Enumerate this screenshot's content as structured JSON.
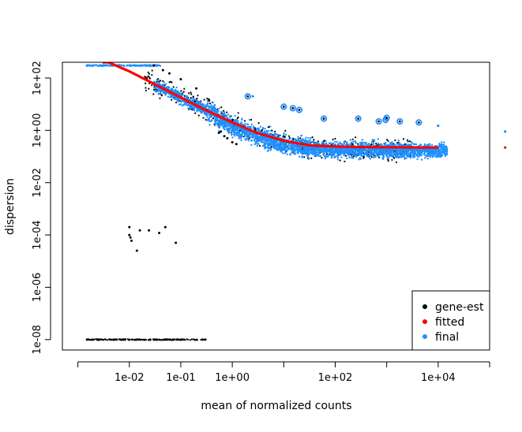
{
  "chart_data": {
    "type": "scatter",
    "title": "",
    "xlabel": "mean of normalized counts",
    "ylabel": "dispersion",
    "x_scale": "log10",
    "y_scale": "log10",
    "xlim": [
      0.0005,
      100000
    ],
    "ylim": [
      4e-09,
      400
    ],
    "grid": false,
    "legend_position": "bottom-right",
    "x_ticks": [
      {
        "value": 0.01,
        "label": "1e-02"
      },
      {
        "value": 0.1,
        "label": "1e-01"
      },
      {
        "value": 1,
        "label": "1e+00"
      },
      {
        "value": 100,
        "label": "1e+02"
      },
      {
        "value": 10000,
        "label": "1e+04"
      }
    ],
    "x_minor_ticks": [
      0.001,
      10,
      1000,
      100000
    ],
    "y_ticks": [
      {
        "value": 1e-08,
        "label": "1e-08"
      },
      {
        "value": 1e-06,
        "label": "1e-06"
      },
      {
        "value": 0.0001,
        "label": "1e-04"
      },
      {
        "value": 0.01,
        "label": "1e-02"
      },
      {
        "value": 1,
        "label": "1e+00"
      },
      {
        "value": 100,
        "label": "1e+02"
      }
    ],
    "legend": [
      {
        "label": "gene-est",
        "color": "#000000"
      },
      {
        "label": "fitted",
        "color": "#ff0000"
      },
      {
        "label": "final",
        "color": "#1e90ff"
      }
    ],
    "series": [
      {
        "name": "gene-est",
        "color": "#000000",
        "points": [
          [
            0.01,
            0.0002
          ],
          [
            0.01,
            0.0001
          ],
          [
            0.0105,
            8e-05
          ],
          [
            0.011,
            6e-05
          ],
          [
            0.014,
            2.5e-05
          ],
          [
            0.016,
            0.00015
          ],
          [
            0.024,
            0.00015
          ],
          [
            0.038,
            0.00012
          ],
          [
            0.05,
            0.0002
          ],
          [
            0.08,
            5e-05
          ],
          [
            0.0015,
            1e-08
          ],
          [
            0.3,
            1e-08
          ],
          [
            0.03,
            300
          ],
          [
            0.045,
            200
          ],
          [
            0.06,
            150
          ],
          [
            0.1,
            90
          ],
          [
            0.2,
            40
          ],
          [
            0.35,
            15
          ],
          [
            0.55,
            0.8
          ],
          [
            0.7,
            0.6
          ],
          [
            0.8,
            0.5
          ],
          [
            1.0,
            0.35
          ],
          [
            0.6,
            0.9
          ],
          [
            1.2,
            0.3
          ]
        ]
      },
      {
        "name": "fitted",
        "color": "#ff0000",
        "curve": [
          [
            0.003,
            500
          ],
          [
            0.01,
            180
          ],
          [
            0.03,
            60
          ],
          [
            0.1,
            18
          ],
          [
            0.3,
            6
          ],
          [
            1,
            2
          ],
          [
            3,
            0.8
          ],
          [
            10,
            0.4
          ],
          [
            30,
            0.27
          ],
          [
            100,
            0.24
          ],
          [
            300,
            0.23
          ],
          [
            1000,
            0.225
          ],
          [
            10000,
            0.22
          ]
        ],
        "points": [
          [
            200000,
            0.22
          ]
        ]
      },
      {
        "name": "final",
        "color": "#1e90ff",
        "points": [
          [
            0.0015,
            300
          ],
          [
            0.003,
            300
          ],
          [
            200000,
            0.9
          ],
          [
            10000,
            1.5
          ],
          [
            2.5,
            20
          ]
        ]
      }
    ],
    "outliers": [
      [
        2,
        20
      ],
      [
        10,
        8
      ],
      [
        15,
        7
      ],
      [
        20,
        6
      ],
      [
        60,
        2.8
      ],
      [
        280,
        2.8
      ],
      [
        700,
        2.2
      ],
      [
        950,
        2.5
      ],
      [
        1800,
        2.2
      ],
      [
        4200,
        2
      ],
      [
        1000,
        3
      ]
    ]
  }
}
